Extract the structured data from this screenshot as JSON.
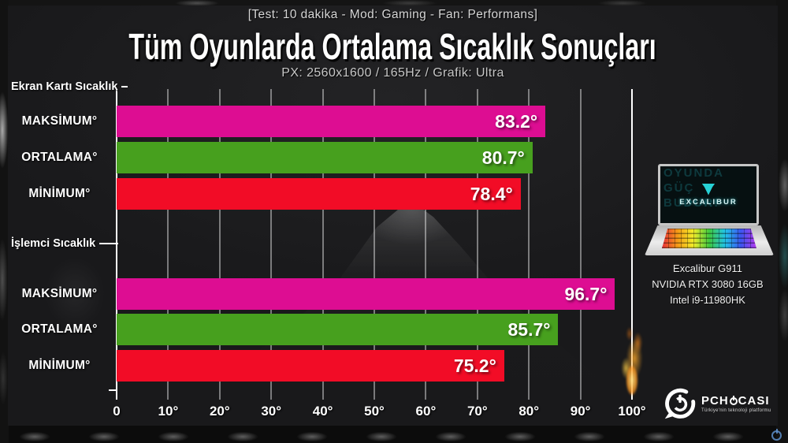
{
  "header": {
    "test_info": "[Test: 10 dakika - Mod: Gaming - Fan: Performans]",
    "title": "Tüm Oyunlarda Ortalama Sıcaklık Sonuçları",
    "subtitle": "PX: 2560x1600 / 165Hz / Grafik: Ultra"
  },
  "chart_data": {
    "type": "bar",
    "orientation": "horizontal",
    "title": "Tüm Oyunlarda Ortalama Sıcaklık Sonuçları",
    "unit": "°",
    "x_axis": {
      "min": 0,
      "max": 100,
      "ticks": [
        "0",
        "10°",
        "20°",
        "30°",
        "40°",
        "50°",
        "60°",
        "70°",
        "80°",
        "90°",
        "100°"
      ],
      "grid": true
    },
    "groups": [
      {
        "label": "Ekran Kartı Sıcaklık",
        "bars": [
          {
            "label": "MAKSİMUM°",
            "value": 83.2,
            "display": "83.2°",
            "color": "#dd0d92"
          },
          {
            "label": "ORTALAMA°",
            "value": 80.7,
            "display": "80.7°",
            "color": "#47a01e"
          },
          {
            "label": "MİNİMUM°",
            "value": 78.4,
            "display": "78.4°",
            "color": "#f20c26"
          }
        ]
      },
      {
        "label": "İşlemci Sıcaklık",
        "bars": [
          {
            "label": "MAKSİMUM°",
            "value": 96.7,
            "display": "96.7°",
            "color": "#dd0d92"
          },
          {
            "label": "ORTALAMA°",
            "value": 85.7,
            "display": "85.7°",
            "color": "#47a01e"
          },
          {
            "label": "MİNİMUM°",
            "value": 75.2,
            "display": "75.2°",
            "color": "#f20c26"
          }
        ]
      }
    ]
  },
  "product": {
    "screen_background_text": "OYUNDA\nGÜÇ\nBUDUR!",
    "screen_logo_text": "EXCALIBUR",
    "name": "Excalibur G911",
    "gpu": "NVIDIA RTX 3080 16GB",
    "cpu": "Intel i9-11980HK"
  },
  "branding": {
    "name_left": "PCH",
    "name_right": "CASI",
    "tagline": "Türkiye'nin teknoloji platformu"
  },
  "colors": {
    "bar_max": "#dd0d92",
    "bar_avg": "#47a01e",
    "bar_min": "#f20c26",
    "accent_cyan": "#27d2d6",
    "panel_bg": "#19191b"
  }
}
